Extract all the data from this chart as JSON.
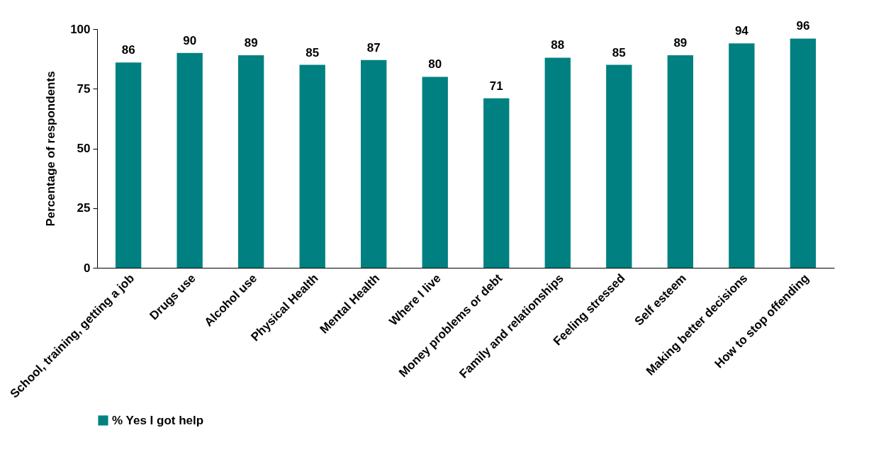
{
  "chart_data": {
    "type": "bar",
    "ylabel": "Percentage of respondents",
    "categories": [
      "School, training, getting a job",
      "Drugs use",
      "Alcohol use",
      "Physical Health",
      "Mental Health",
      "Where I live",
      "Money problems or debt",
      "Family and relationships",
      "Feeling stressed",
      "Self esteem",
      "Making better decisions",
      "How to stop offending"
    ],
    "series": [
      {
        "name": "% Yes I got help",
        "color": "#008080",
        "values": [
          86,
          90,
          89,
          85,
          87,
          80,
          71,
          88,
          85,
          89,
          94,
          96
        ]
      }
    ],
    "ylim": [
      0,
      100
    ],
    "yticks": [
      0,
      25,
      50,
      75,
      100
    ],
    "data_labels": true,
    "grid": false,
    "legend": "bottom"
  }
}
